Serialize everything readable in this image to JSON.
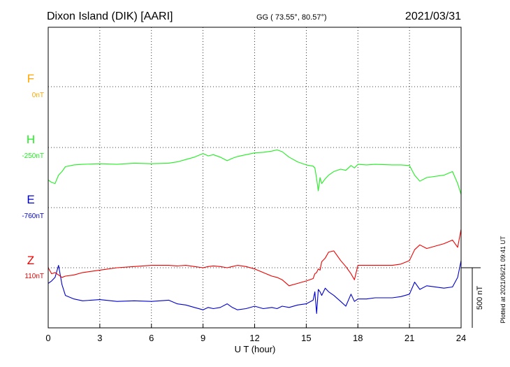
{
  "header": {
    "station": "Dixon Island (DIK)  [AARI]",
    "coords": "GG ( 73.55°,  80.57°)",
    "date": "2021/03/31"
  },
  "plotted_note": "Plotted at 2021/06/21 09:41 UT",
  "chart_data": {
    "type": "line",
    "title": "Dixon Island (DIK)  [AARI]",
    "subtitle": "GG ( 73.55°,  80.57°)",
    "date": "2021/03/31",
    "xlabel": "U T (hour)",
    "xlim": [
      0,
      24
    ],
    "xticks": [
      0,
      3,
      6,
      9,
      12,
      15,
      18,
      21,
      24
    ],
    "grid": true,
    "scale_bar": {
      "label": "500 nT",
      "value_nT": 500
    },
    "series": [
      {
        "name": "F",
        "baseline_label": "0nT",
        "color": "#ffa500",
        "x": [],
        "y": []
      },
      {
        "name": "H",
        "baseline_label": "-250nT",
        "color": "#22ee22",
        "x": [
          0,
          0.2,
          0.4,
          0.6,
          0.8,
          1.0,
          1.5,
          2,
          3,
          4,
          5,
          6,
          7,
          7.5,
          8,
          8.5,
          9,
          9.3,
          9.6,
          10,
          10.4,
          10.7,
          11,
          11.5,
          12,
          12.5,
          13,
          13.3,
          13.6,
          14,
          14.5,
          15,
          15.4,
          15.5,
          15.6,
          15.7,
          15.8,
          15.9,
          16.1,
          16.3,
          16.6,
          17,
          17.3,
          17.6,
          17.8,
          18,
          18.5,
          19,
          20,
          20.5,
          21,
          21.3,
          21.6,
          22,
          23,
          23.5,
          23.8,
          24
        ],
        "y": [
          -270,
          -290,
          -300,
          -230,
          -200,
          -160,
          -145,
          -140,
          -135,
          -140,
          -130,
          -135,
          -130,
          -120,
          -100,
          -80,
          -50,
          -70,
          -60,
          -80,
          -110,
          -90,
          -75,
          -60,
          -45,
          -40,
          -30,
          -20,
          -35,
          -80,
          -120,
          -145,
          -155,
          -170,
          -260,
          -360,
          -250,
          -300,
          -260,
          -230,
          -200,
          -180,
          -190,
          -150,
          -170,
          -140,
          -145,
          -140,
          -145,
          -145,
          -150,
          -230,
          -280,
          -250,
          -230,
          -200,
          -300,
          -390
        ]
      },
      {
        "name": "E",
        "baseline_label": "-760nT",
        "color": "#0000cc",
        "x": [
          0,
          0.2,
          0.4,
          0.6,
          0.8,
          1.0,
          1.5,
          2,
          3,
          4,
          5,
          6,
          7,
          7.5,
          8,
          8.5,
          9,
          9.3,
          9.6,
          10,
          10.4,
          10.7,
          11,
          11.5,
          12,
          12.5,
          13,
          13.3,
          13.6,
          14,
          14.5,
          15,
          15.4,
          15.5,
          15.6,
          15.7,
          15.8,
          15.9,
          16.1,
          16.3,
          16.6,
          17,
          17.3,
          17.6,
          17.8,
          18,
          18.5,
          19,
          20,
          20.5,
          21,
          21.3,
          21.6,
          22,
          23,
          23.5,
          23.8,
          24
        ],
        "y": [
          -630,
          -610,
          -580,
          -480,
          -640,
          -730,
          -760,
          -775,
          -765,
          -780,
          -775,
          -780,
          -770,
          -800,
          -810,
          -830,
          -850,
          -830,
          -840,
          -830,
          -800,
          -830,
          -850,
          -840,
          -820,
          -840,
          -830,
          -840,
          -820,
          -830,
          -810,
          -800,
          -770,
          -700,
          -880,
          -680,
          -700,
          -730,
          -670,
          -700,
          -730,
          -780,
          -820,
          -720,
          -780,
          -760,
          -760,
          -750,
          -750,
          -740,
          -720,
          -620,
          -680,
          -650,
          -670,
          -660,
          -580,
          -440
        ]
      },
      {
        "name": "Z",
        "baseline_label": "110nT",
        "color": "#ee0000",
        "x": [
          0,
          0.2,
          0.4,
          0.6,
          0.8,
          1.0,
          1.5,
          2,
          3,
          4,
          5,
          6,
          7,
          7.5,
          8,
          8.5,
          9,
          9.3,
          9.6,
          10,
          10.4,
          10.7,
          11,
          11.5,
          12,
          12.5,
          13,
          13.3,
          13.6,
          14,
          14.5,
          15,
          15.4,
          15.5,
          15.6,
          15.7,
          15.8,
          15.9,
          16.1,
          16.3,
          16.6,
          17,
          17.3,
          17.6,
          17.8,
          18,
          18.5,
          19,
          20,
          20.5,
          21,
          21.3,
          21.6,
          22,
          23,
          23.5,
          23.8,
          24
        ],
        "y": [
          0,
          -50,
          -40,
          -60,
          -80,
          -70,
          -60,
          -40,
          -20,
          0,
          10,
          20,
          20,
          15,
          20,
          10,
          0,
          10,
          15,
          10,
          0,
          10,
          20,
          10,
          -10,
          -40,
          -70,
          -80,
          -100,
          -150,
          -130,
          -110,
          -90,
          -50,
          -40,
          -10,
          -20,
          50,
          80,
          130,
          140,
          60,
          10,
          -50,
          -100,
          20,
          20,
          20,
          20,
          30,
          60,
          150,
          190,
          160,
          200,
          230,
          170,
          320
        ]
      }
    ]
  }
}
